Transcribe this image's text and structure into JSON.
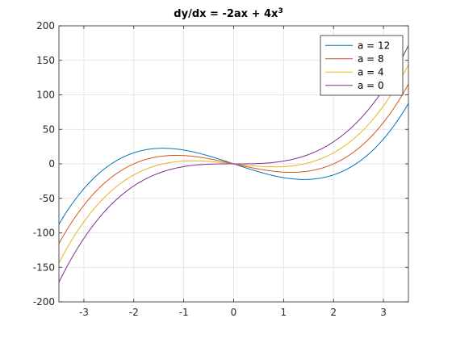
{
  "chart_data": {
    "type": "line",
    "title": "dy/dx = -2ax + 4x",
    "title_superscript": "3",
    "xlabel": "",
    "ylabel": "",
    "xlim": [
      -3.5,
      3.5
    ],
    "ylim": [
      -200,
      200
    ],
    "x_ticks": [
      -3,
      -2,
      -1,
      0,
      1,
      2,
      3
    ],
    "y_ticks": [
      -200,
      -150,
      -100,
      -50,
      0,
      50,
      100,
      150,
      200
    ],
    "grid": true,
    "legend_position": "top-right",
    "series": [
      {
        "name": "a = 12",
        "a": 12,
        "color": "#0072bd",
        "x": [
          -3.5,
          -3,
          -2.5,
          -2,
          -1.5,
          -1,
          -0.5,
          0,
          0.5,
          1,
          1.5,
          2,
          2.5,
          3,
          3.5
        ],
        "values": [
          -87.5,
          -36,
          -2.5,
          16,
          22.5,
          20,
          11.5,
          0,
          -11.5,
          -20,
          -22.5,
          -16,
          2.5,
          36,
          87.5
        ]
      },
      {
        "name": "a = 8",
        "a": 8,
        "color": "#d95319",
        "x": [
          -3.5,
          -3,
          -2.5,
          -2,
          -1.5,
          -1,
          -0.5,
          0,
          0.5,
          1,
          1.5,
          2,
          2.5,
          3,
          3.5
        ],
        "values": [
          -115.5,
          -60,
          -22.5,
          0,
          10.5,
          12,
          7.5,
          0,
          -7.5,
          -12,
          -10.5,
          0,
          22.5,
          60,
          115.5
        ]
      },
      {
        "name": "a = 4",
        "a": 4,
        "color": "#edb120",
        "x": [
          -3.5,
          -3,
          -2.5,
          -2,
          -1.5,
          -1,
          -0.5,
          0,
          0.5,
          1,
          1.5,
          2,
          2.5,
          3,
          3.5
        ],
        "values": [
          -143.5,
          -84,
          -42.5,
          -16,
          -1.5,
          4,
          3.5,
          0,
          -3.5,
          -4,
          1.5,
          16,
          42.5,
          84,
          143.5
        ]
      },
      {
        "name": "a = 0",
        "a": 0,
        "color": "#7e2f8e",
        "x": [
          -3.5,
          -3,
          -2.5,
          -2,
          -1.5,
          -1,
          -0.5,
          0,
          0.5,
          1,
          1.5,
          2,
          2.5,
          3,
          3.5
        ],
        "values": [
          -171.5,
          -108,
          -62.5,
          -32,
          -13.5,
          -4,
          -0.5,
          0,
          0.5,
          4,
          13.5,
          32,
          62.5,
          108,
          171.5
        ]
      }
    ]
  }
}
